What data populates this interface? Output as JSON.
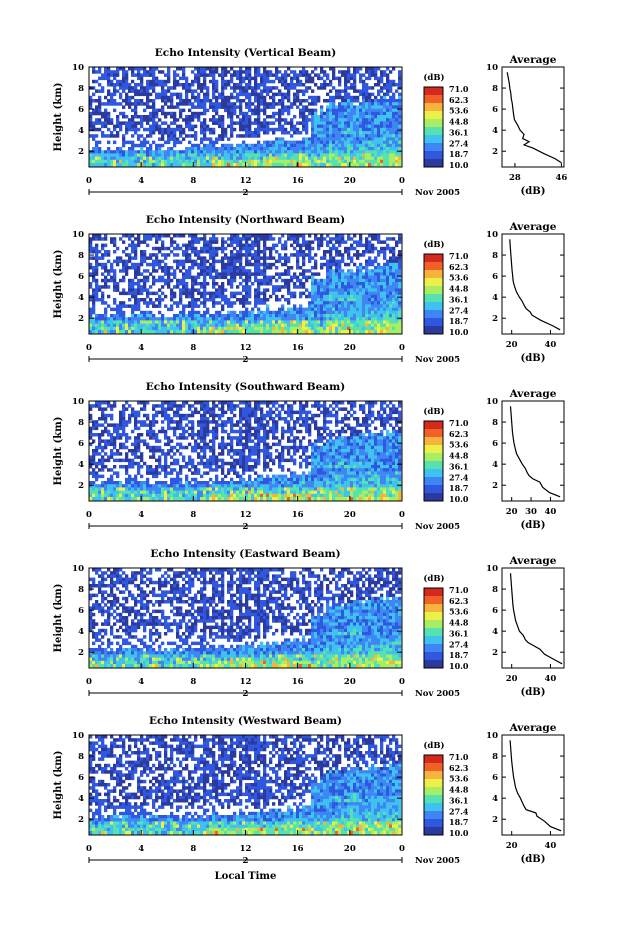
{
  "figure": {
    "x_tick_labels": [
      "0",
      "4",
      "8",
      "12",
      "16",
      "20",
      "0"
    ],
    "date_label": "2",
    "month_label": "Nov 2005",
    "xlabel": "Local Time",
    "ylabel": "Height (km)",
    "y_tick_labels": [
      "2",
      "4",
      "6",
      "8",
      "10"
    ],
    "colorbar_title": "(dB)",
    "colorbar_labels": [
      "71.0",
      "62.3",
      "53.6",
      "44.8",
      "36.1",
      "27.4",
      "18.7",
      "10.0"
    ],
    "avg_title": "Average",
    "avg_xlabel": "(dB)",
    "colors": {
      "scale": [
        "#2b3a9c",
        "#2f57e0",
        "#3f86f5",
        "#3fc2f0",
        "#55e2b0",
        "#a8ee62",
        "#eef04a",
        "#f6b43c",
        "#f2602a",
        "#d42a1e"
      ]
    }
  },
  "chart_data": [
    {
      "type": "heatmap",
      "title": "Echo Intensity (Vertical Beam)",
      "xlabel": "Local Time",
      "ylabel": "Height (km)",
      "x_range_hours": [
        0,
        24
      ],
      "y_range_km": [
        0.5,
        10
      ],
      "color_range_db": [
        10.0,
        71.0
      ],
      "avg_profile": {
        "title": "Average",
        "xlabel": "(dB)",
        "x_ticks": [
          "28",
          "46"
        ],
        "xlim": [
          23,
          47
        ],
        "height_km": [
          0.9,
          1.3,
          1.8,
          2.3,
          2.6,
          2.9,
          3.2,
          3.6,
          4.0,
          4.5,
          5.0,
          5.5,
          6.0,
          6.5,
          7.0,
          7.5,
          8.0,
          8.5,
          9.0,
          9.5
        ],
        "db": [
          46.0,
          43.5,
          39.0,
          35.0,
          31.5,
          33.5,
          31.0,
          31.5,
          30.0,
          29.0,
          27.8,
          27.5,
          27.2,
          27.0,
          26.6,
          26.4,
          26.0,
          25.8,
          25.4,
          25.0
        ]
      }
    },
    {
      "type": "heatmap",
      "title": "Echo Intensity (Northward Beam)",
      "xlabel": "Local Time",
      "ylabel": "Height (km)",
      "x_range_hours": [
        0,
        24
      ],
      "y_range_km": [
        0.5,
        10
      ],
      "color_range_db": [
        10.0,
        71.0
      ],
      "avg_profile": {
        "title": "Average",
        "xlabel": "(dB)",
        "x_ticks": [
          "20",
          "40"
        ],
        "xlim": [
          15,
          47
        ],
        "height_km": [
          0.9,
          1.3,
          1.8,
          2.3,
          2.6,
          2.9,
          3.2,
          3.6,
          4.0,
          4.5,
          5.0,
          5.5,
          6.0,
          6.5,
          7.0,
          7.5,
          8.0,
          8.5,
          9.0,
          9.5
        ],
        "db": [
          45.0,
          41.0,
          35.0,
          30.5,
          29.5,
          27.5,
          26.5,
          25.5,
          24.0,
          22.5,
          21.5,
          20.8,
          20.5,
          20.2,
          20.0,
          19.8,
          19.6,
          19.4,
          19.2,
          19.0
        ]
      }
    },
    {
      "type": "heatmap",
      "title": "Echo Intensity (Southward Beam)",
      "xlabel": "Local Time",
      "ylabel": "Height (km)",
      "x_range_hours": [
        0,
        24
      ],
      "y_range_km": [
        0.5,
        10
      ],
      "color_range_db": [
        10.0,
        71.0
      ],
      "avg_profile": {
        "title": "Average",
        "xlabel": "(dB)",
        "x_ticks": [
          "20",
          "30",
          "40"
        ],
        "xlim": [
          15,
          47
        ],
        "height_km": [
          0.9,
          1.3,
          1.8,
          2.3,
          2.6,
          2.9,
          3.2,
          3.6,
          4.0,
          4.5,
          5.0,
          5.5,
          6.0,
          6.5,
          7.0,
          7.5,
          8.0,
          8.5,
          9.0,
          9.5
        ],
        "db": [
          45.0,
          39.5,
          36.0,
          34.5,
          31.0,
          29.0,
          28.0,
          27.0,
          25.5,
          24.0,
          22.5,
          21.8,
          21.2,
          20.8,
          20.4,
          20.2,
          20.0,
          19.8,
          19.6,
          19.4
        ]
      }
    },
    {
      "type": "heatmap",
      "title": "Echo Intensity (Eastward Beam)",
      "xlabel": "Local Time",
      "ylabel": "Height (km)",
      "x_range_hours": [
        0,
        24
      ],
      "y_range_km": [
        0.5,
        10
      ],
      "color_range_db": [
        10.0,
        71.0
      ],
      "avg_profile": {
        "title": "Average",
        "xlabel": "(dB)",
        "x_ticks": [
          "20",
          "40"
        ],
        "xlim": [
          15,
          47
        ],
        "height_km": [
          0.9,
          1.3,
          1.8,
          2.3,
          2.6,
          2.9,
          3.2,
          3.6,
          4.0,
          4.5,
          5.0,
          5.5,
          6.0,
          6.5,
          7.0,
          7.5,
          8.0,
          8.5,
          9.0,
          9.5
        ],
        "db": [
          46.0,
          42.0,
          37.0,
          34.5,
          31.5,
          28.5,
          27.0,
          26.0,
          24.0,
          23.0,
          22.0,
          21.5,
          21.0,
          20.6,
          20.4,
          20.2,
          20.0,
          19.8,
          19.6,
          19.4
        ]
      }
    },
    {
      "type": "heatmap",
      "title": "Echo Intensity (Westward Beam)",
      "xlabel": "Local Time",
      "ylabel": "Height (km)",
      "x_range_hours": [
        0,
        24
      ],
      "y_range_km": [
        0.5,
        10
      ],
      "color_range_db": [
        10.0,
        71.0
      ],
      "avg_profile": {
        "title": "Average",
        "xlabel": "(dB)",
        "x_ticks": [
          "20",
          "40"
        ],
        "xlim": [
          15,
          47
        ],
        "height_km": [
          0.9,
          1.3,
          1.8,
          2.3,
          2.6,
          2.9,
          3.2,
          3.6,
          4.0,
          4.5,
          5.0,
          5.5,
          6.0,
          6.5,
          7.0,
          7.5,
          8.0,
          8.5,
          9.0,
          9.5
        ],
        "db": [
          45.5,
          40.0,
          37.0,
          33.0,
          32.5,
          27.5,
          26.5,
          25.5,
          24.5,
          23.0,
          22.0,
          21.5,
          21.0,
          20.6,
          20.3,
          20.0,
          19.8,
          19.6,
          19.4,
          19.2
        ]
      }
    }
  ]
}
